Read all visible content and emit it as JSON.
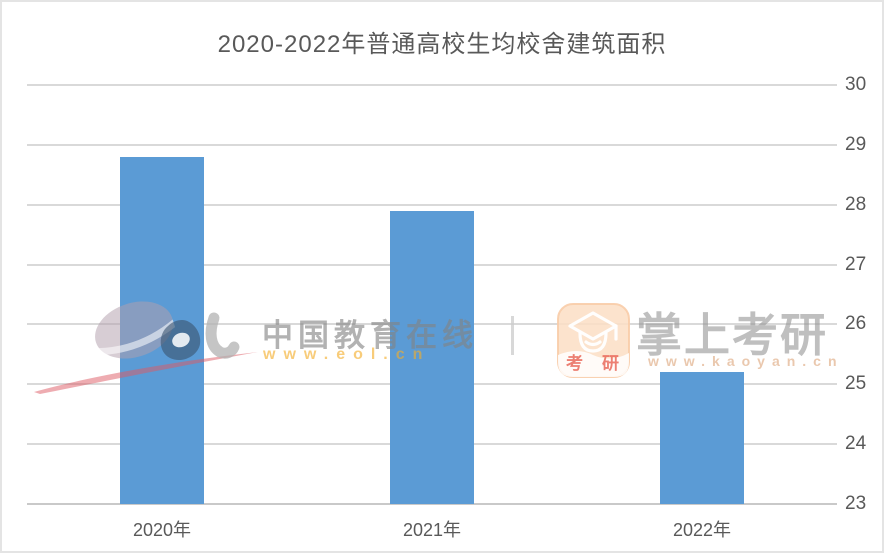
{
  "chart_data": {
    "type": "bar",
    "title": "2020-2022年普通高校生均校舍建筑面积",
    "categories": [
      "2020年",
      "2021年",
      "2022年"
    ],
    "values": [
      28.8,
      27.9,
      25.2
    ],
    "xlabel": "",
    "ylabel": "",
    "ylim": [
      23,
      30
    ],
    "yticks": [
      23,
      24,
      25,
      26,
      27,
      28,
      29,
      30
    ],
    "ytick_side": "right",
    "grid": true,
    "legend": "none",
    "bar_color": "#5b9bd5",
    "gridline_color": "#d9d9d9",
    "label_color": "#595959"
  },
  "watermarks": {
    "eol": {
      "logo_name": "eol-logo",
      "name": "中国教育在线",
      "url": "www.eol.cn",
      "url_color": "#f3ad28",
      "name_color": "#828282"
    },
    "kaoyan": {
      "icon_name": "kaoyan-app-icon",
      "icon_char_left": "考",
      "icon_char_right": "研",
      "name": "掌上考研",
      "url": "www.kaoyan.cn",
      "name_color": "#949494",
      "url_color": "#e6be a0"
    }
  }
}
